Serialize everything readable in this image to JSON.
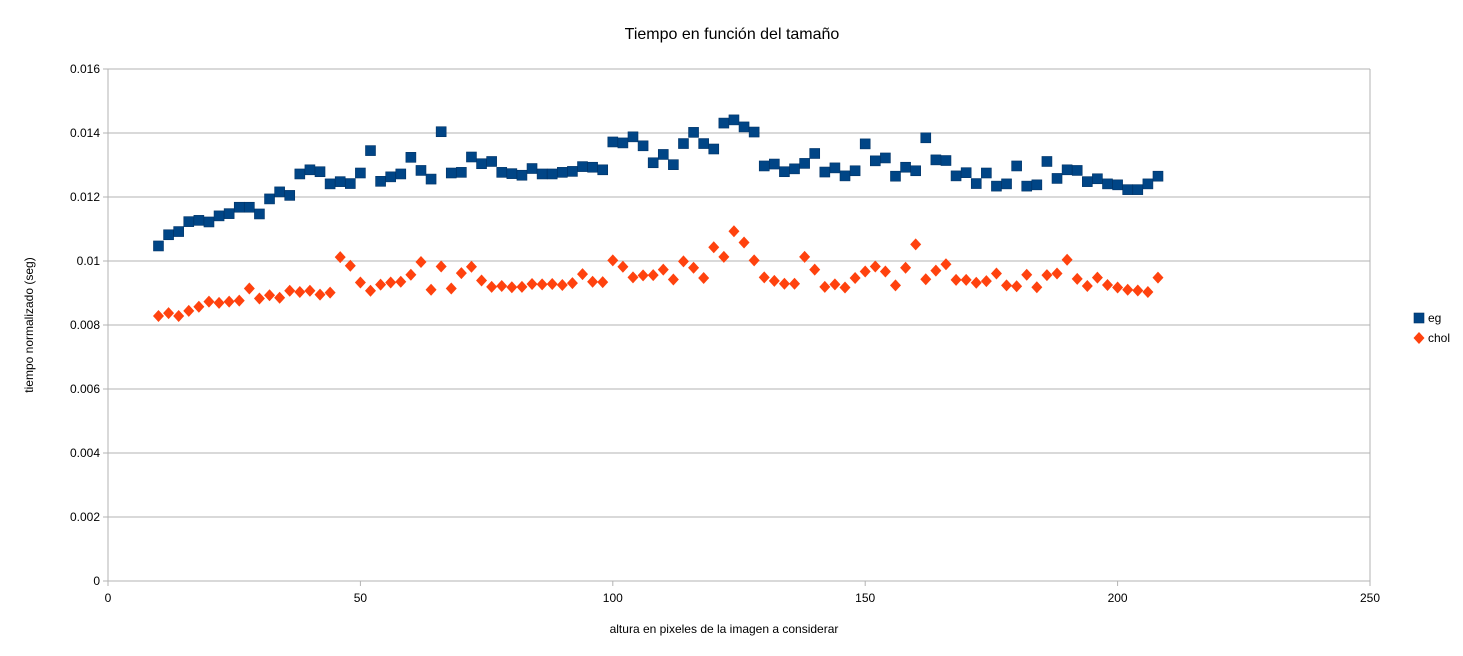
{
  "chart_data": {
    "type": "scatter",
    "title": "Tiempo en función del tamaño",
    "xlabel": "altura en pixeles de la imagen a considerar",
    "ylabel": "tiempo normalizado (seg)",
    "xlim": [
      0,
      250
    ],
    "ylim": [
      0,
      0.016
    ],
    "x_ticks": [
      "0",
      "50",
      "100",
      "150",
      "200",
      "250"
    ],
    "y_ticks": [
      "0",
      "0.002",
      "0.004",
      "0.006",
      "0.008",
      "0.01",
      "0.012",
      "0.014",
      "0.016"
    ],
    "grid": true,
    "legend_position": "right",
    "x": [
      10,
      12,
      14,
      16,
      18,
      20,
      22,
      24,
      26,
      28,
      30,
      32,
      34,
      36,
      38,
      40,
      42,
      44,
      46,
      48,
      50,
      52,
      54,
      56,
      58,
      60,
      62,
      64,
      66,
      68,
      70,
      72,
      74,
      76,
      78,
      80,
      82,
      84,
      86,
      88,
      90,
      92,
      94,
      96,
      98,
      100,
      102,
      104,
      106,
      108,
      110,
      112,
      114,
      116,
      118,
      120,
      122,
      124,
      126,
      128,
      130,
      132,
      134,
      136,
      138,
      140,
      142,
      144,
      146,
      148,
      150,
      152,
      154,
      156,
      158,
      160,
      162,
      164,
      166,
      168,
      170,
      172,
      174,
      176,
      178,
      180,
      182,
      184,
      186,
      188,
      190,
      192,
      194,
      196,
      198,
      200,
      202,
      204,
      206,
      208
    ],
    "series": [
      {
        "name": "eg",
        "color": "#004586",
        "marker": "square",
        "values": [
          0.01047,
          0.01082,
          0.01092,
          0.01123,
          0.01127,
          0.01122,
          0.01141,
          0.01148,
          0.01168,
          0.01168,
          0.01147,
          0.01194,
          0.01216,
          0.01205,
          0.01272,
          0.01285,
          0.01279,
          0.01241,
          0.01248,
          0.01242,
          0.01275,
          0.01345,
          0.01249,
          0.01263,
          0.01272,
          0.01324,
          0.01283,
          0.01256,
          0.01404,
          0.01275,
          0.01277,
          0.01325,
          0.01304,
          0.01311,
          0.01277,
          0.01273,
          0.01268,
          0.01289,
          0.01272,
          0.01272,
          0.01277,
          0.0128,
          0.01295,
          0.01293,
          0.01285,
          0.01372,
          0.01369,
          0.01388,
          0.0136,
          0.01307,
          0.01333,
          0.01301,
          0.01367,
          0.01402,
          0.01367,
          0.0135,
          0.01431,
          0.01441,
          0.01419,
          0.01403,
          0.01297,
          0.01303,
          0.01279,
          0.01288,
          0.01305,
          0.01336,
          0.01278,
          0.01291,
          0.01266,
          0.01282,
          0.01366,
          0.01313,
          0.01322,
          0.01265,
          0.01293,
          0.01282,
          0.01385,
          0.01316,
          0.01314,
          0.01266,
          0.01276,
          0.01242,
          0.01275,
          0.01234,
          0.01241,
          0.01297,
          0.01234,
          0.01238,
          0.01311,
          0.01258,
          0.01285,
          0.01283,
          0.01248,
          0.01257,
          0.01241,
          0.01238,
          0.01223,
          0.01223,
          0.01241,
          0.01265
        ]
      },
      {
        "name": "chol",
        "color": "#ff420e",
        "marker": "diamond",
        "values": [
          0.00828,
          0.00837,
          0.00828,
          0.00844,
          0.00857,
          0.00873,
          0.00869,
          0.00873,
          0.00876,
          0.00914,
          0.00883,
          0.00893,
          0.00885,
          0.00907,
          0.00903,
          0.00907,
          0.00895,
          0.00901,
          0.01012,
          0.00985,
          0.00933,
          0.00907,
          0.00926,
          0.00933,
          0.00935,
          0.00957,
          0.00997,
          0.0091,
          0.00983,
          0.00914,
          0.00962,
          0.00982,
          0.00939,
          0.00919,
          0.00922,
          0.00918,
          0.00919,
          0.00928,
          0.00927,
          0.00928,
          0.00925,
          0.00931,
          0.00959,
          0.00935,
          0.00934,
          0.01002,
          0.00982,
          0.00949,
          0.00955,
          0.00956,
          0.00973,
          0.00942,
          0.00999,
          0.00979,
          0.00947,
          0.01043,
          0.01013,
          0.01093,
          0.01058,
          0.01002,
          0.00949,
          0.00938,
          0.00929,
          0.00929,
          0.01013,
          0.00973,
          0.00919,
          0.00927,
          0.00917,
          0.00947,
          0.00967,
          0.00983,
          0.00967,
          0.00924,
          0.00979,
          0.01052,
          0.00943,
          0.0097,
          0.0099,
          0.00941,
          0.00941,
          0.00932,
          0.00937,
          0.00961,
          0.00924,
          0.00921,
          0.00957,
          0.00918,
          0.00956,
          0.00961,
          0.01004,
          0.00944,
          0.00922,
          0.00948,
          0.00925,
          0.00917,
          0.0091,
          0.00908,
          0.00903,
          0.00948
        ]
      }
    ]
  }
}
